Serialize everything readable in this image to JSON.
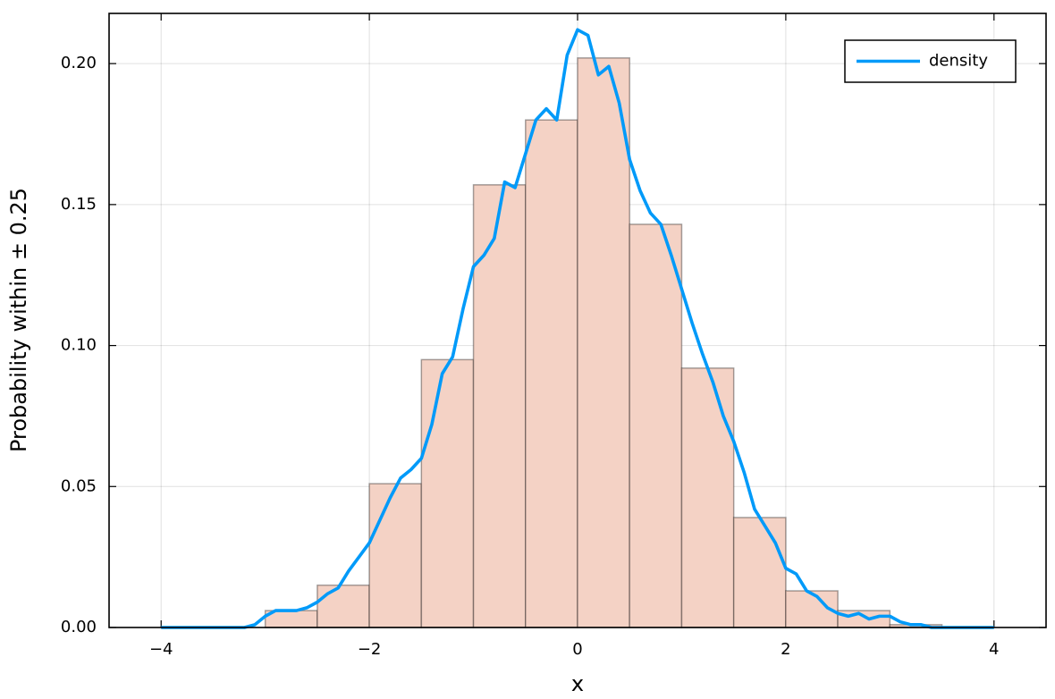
{
  "chart_data": {
    "type": "histogram",
    "xlabel": "x",
    "ylabel": "Probability within ± 0.25",
    "bins": [
      -3,
      -2.5,
      -2,
      -1.5,
      -1,
      -0.5,
      0,
      0.5,
      1,
      1.5,
      2,
      2.5,
      3,
      3.5
    ],
    "counts": [
      0.006,
      0.015,
      0.051,
      0.095,
      0.157,
      0.18,
      0.202,
      0.143,
      0.092,
      0.039,
      0.013,
      0.006,
      0.001
    ],
    "bar_color": "#f4d2c5",
    "series": [
      {
        "name": "density",
        "color": "#009af9",
        "x": [
          -4,
          -3.9,
          -3.8,
          -3.7,
          -3.6,
          -3.5,
          -3.4,
          -3.3,
          -3.2,
          -3.1,
          -3,
          -2.9,
          -2.8,
          -2.7,
          -2.6,
          -2.5,
          -2.4,
          -2.3,
          -2.2,
          -2.1,
          -2,
          -1.9,
          -1.8,
          -1.7,
          -1.6,
          -1.5,
          -1.4,
          -1.3,
          -1.2,
          -1.1,
          -1,
          -0.9,
          -0.8,
          -0.7,
          -0.6,
          -0.5,
          -0.4,
          -0.3,
          -0.2,
          -0.1,
          0,
          0.1,
          0.2,
          0.3,
          0.4,
          0.5,
          0.6,
          0.7,
          0.8,
          0.9,
          1,
          1.1,
          1.2,
          1.3,
          1.4,
          1.5,
          1.6,
          1.7,
          1.8,
          1.9,
          2,
          2.1,
          2.2,
          2.3,
          2.4,
          2.5,
          2.6,
          2.7,
          2.8,
          2.9,
          3,
          3.1,
          3.2,
          3.3,
          3.4,
          3.5,
          3.6,
          3.7,
          3.8,
          3.9,
          4
        ],
        "values": [
          0,
          0,
          0,
          0,
          0,
          0,
          0,
          0,
          0,
          0.001,
          0.004,
          0.006,
          0.006,
          0.006,
          0.007,
          0.009,
          0.012,
          0.014,
          0.02,
          0.025,
          0.03,
          0.038,
          0.046,
          0.053,
          0.056,
          0.06,
          0.072,
          0.09,
          0.096,
          0.113,
          0.128,
          0.132,
          0.138,
          0.158,
          0.156,
          0.168,
          0.18,
          0.184,
          0.18,
          0.203,
          0.212,
          0.21,
          0.196,
          0.199,
          0.186,
          0.166,
          0.155,
          0.147,
          0.143,
          0.132,
          0.12,
          0.108,
          0.097,
          0.087,
          0.075,
          0.066,
          0.055,
          0.042,
          0.036,
          0.03,
          0.021,
          0.019,
          0.013,
          0.011,
          0.007,
          0.005,
          0.004,
          0.005,
          0.003,
          0.004,
          0.004,
          0.002,
          0.001,
          0.001,
          0,
          0,
          0,
          0,
          0,
          0,
          0
        ]
      }
    ],
    "xlim": [
      -4.5,
      4.5
    ],
    "ylim": [
      0,
      0.2178
    ],
    "xticks": [
      {
        "value": -4,
        "label": "−4"
      },
      {
        "value": -2,
        "label": "−2"
      },
      0,
      2,
      4
    ],
    "yticks": [
      {
        "value": 0,
        "label": "0.00"
      },
      0.05,
      {
        "value": 0.1,
        "label": "0.10"
      },
      0.15,
      {
        "value": 0.2,
        "label": "0.20"
      }
    ],
    "grid": true,
    "legend": "top-right"
  }
}
